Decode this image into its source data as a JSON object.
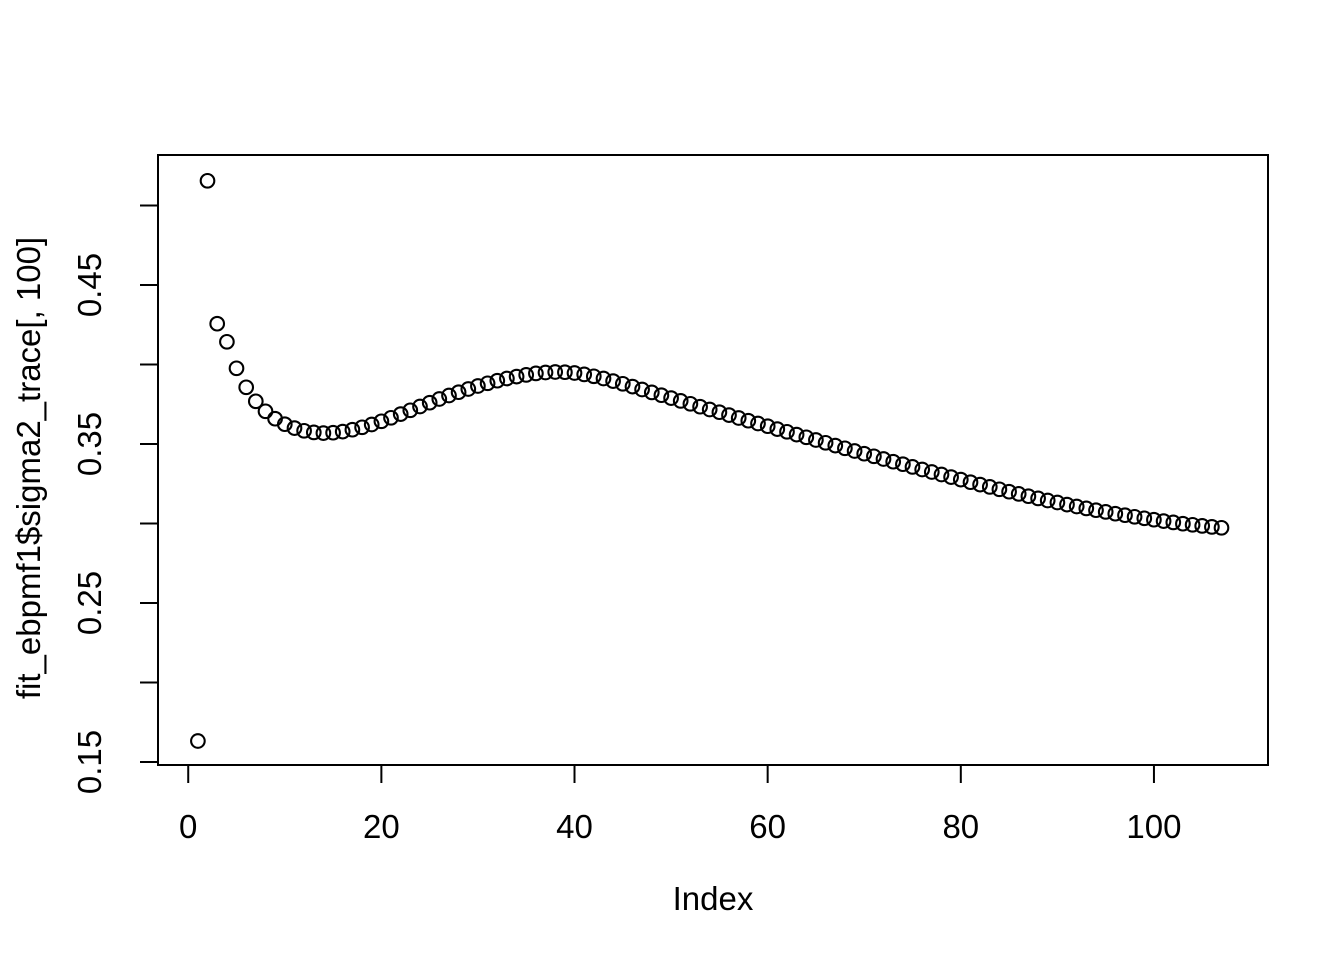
{
  "figure": {
    "background_color": "#ffffff",
    "foreground_color": "#000000"
  },
  "chart_data": {
    "type": "scatter",
    "title": "",
    "xlabel": "Index",
    "ylabel": "fit_ebpmf1$sigma2_trace[, 100]",
    "marker": "open-circle",
    "marker_color": "#000000",
    "grid": false,
    "legend": false,
    "x_ticks": [
      0,
      20,
      40,
      60,
      80,
      100
    ],
    "y_ticks": [
      0.15,
      0.2,
      0.25,
      0.3,
      0.35,
      0.4,
      0.45,
      0.5
    ],
    "y_tick_labels": [
      "0.15",
      "",
      "0.25",
      "",
      "0.35",
      "",
      "0.45",
      ""
    ],
    "xlim": [
      -3.13,
      111.81
    ],
    "ylim": [
      0.1481,
      0.5318
    ],
    "x": [
      1,
      2,
      3,
      4,
      5,
      6,
      7,
      8,
      9,
      10,
      11,
      12,
      13,
      14,
      15,
      16,
      17,
      18,
      19,
      20,
      21,
      22,
      23,
      24,
      25,
      26,
      27,
      28,
      29,
      30,
      31,
      32,
      33,
      34,
      35,
      36,
      37,
      38,
      39,
      40,
      41,
      42,
      43,
      44,
      45,
      46,
      47,
      48,
      49,
      50,
      51,
      52,
      53,
      54,
      55,
      56,
      57,
      58,
      59,
      60,
      61,
      62,
      63,
      64,
      65,
      66,
      67,
      68,
      69,
      70,
      71,
      72,
      73,
      74,
      75,
      76,
      77,
      78,
      79,
      80,
      81,
      82,
      83,
      84,
      85,
      86,
      87,
      88,
      89,
      90,
      91,
      92,
      93,
      94,
      95,
      96,
      97,
      98,
      99,
      100,
      101,
      102,
      103,
      104,
      105,
      106,
      107
    ],
    "y": [
      0.1632,
      0.5156,
      0.4257,
      0.4143,
      0.3976,
      0.3857,
      0.3769,
      0.3706,
      0.3659,
      0.3625,
      0.36,
      0.3583,
      0.3573,
      0.3569,
      0.3571,
      0.3578,
      0.359,
      0.3605,
      0.3623,
      0.3643,
      0.3665,
      0.3688,
      0.3712,
      0.3736,
      0.376,
      0.3783,
      0.3805,
      0.3826,
      0.3846,
      0.3865,
      0.3882,
      0.3898,
      0.3912,
      0.3924,
      0.3935,
      0.3944,
      0.395,
      0.3953,
      0.3952,
      0.3947,
      0.3938,
      0.3926,
      0.3912,
      0.3896,
      0.3879,
      0.3861,
      0.3843,
      0.3825,
      0.3807,
      0.3789,
      0.3771,
      0.3753,
      0.3735,
      0.3717,
      0.37,
      0.3682,
      0.3664,
      0.3647,
      0.3629,
      0.3612,
      0.3594,
      0.3577,
      0.3559,
      0.3542,
      0.3525,
      0.3508,
      0.349,
      0.3473,
      0.3456,
      0.3439,
      0.3423,
      0.3406,
      0.3389,
      0.3373,
      0.3356,
      0.334,
      0.3324,
      0.3308,
      0.3292,
      0.3276,
      0.326,
      0.3245,
      0.323,
      0.3215,
      0.32,
      0.3186,
      0.3172,
      0.3158,
      0.3145,
      0.3132,
      0.3119,
      0.3107,
      0.3095,
      0.3084,
      0.3073,
      0.3062,
      0.3052,
      0.3042,
      0.3033,
      0.3024,
      0.3015,
      0.3007,
      0.2999,
      0.2992,
      0.2985,
      0.2979,
      0.2973
    ]
  }
}
